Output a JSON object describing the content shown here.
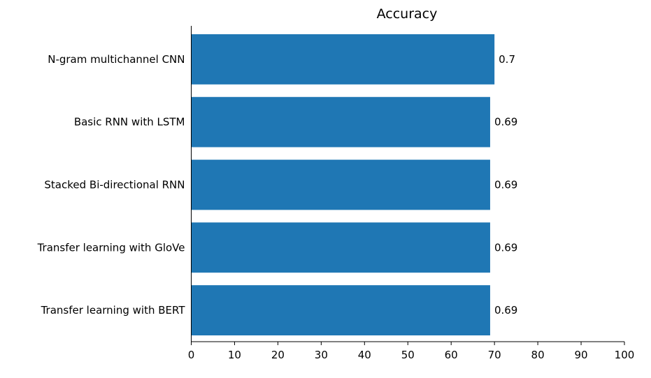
{
  "chart_data": {
    "type": "bar",
    "orientation": "horizontal",
    "title": "Accuracy",
    "categories": [
      "N-gram multichannel CNN",
      "Basic RNN with LSTM",
      "Stacked Bi-directional RNN",
      "Transfer learning with GloVe",
      "Transfer learning with BERT"
    ],
    "values": [
      70,
      69,
      69,
      69,
      69
    ],
    "data_labels": [
      "0.7",
      "0.69",
      "0.69",
      "0.69",
      "0.69"
    ],
    "xlim": [
      0,
      100
    ],
    "xticks": [
      0,
      10,
      20,
      30,
      40,
      50,
      60,
      70,
      80,
      90,
      100
    ],
    "xlabel": "",
    "ylabel": "",
    "grid": false,
    "bar_color": "#1f77b4",
    "spines": "left-bottom"
  }
}
